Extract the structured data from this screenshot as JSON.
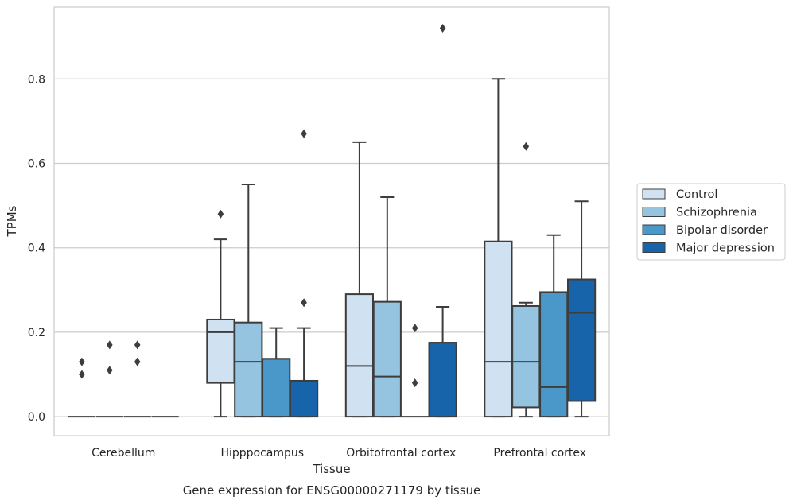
{
  "chart_data": {
    "type": "box",
    "xlabel": "Tissue",
    "ylabel": "TPMs",
    "caption": "Gene expression for ENSG00000271179 by tissue",
    "categories": [
      "Cerebellum",
      "Hipppocampus",
      "Orbitofrontal cortex",
      "Prefrontal cortex"
    ],
    "ylim": [
      -0.045,
      0.97
    ],
    "yticks": [
      "0.0",
      "0.2",
      "0.4",
      "0.6",
      "0.8"
    ],
    "grid": "horizontal",
    "legend_position": "right",
    "series": [
      {
        "name": "Control",
        "color": "#d0e1f2",
        "boxes": [
          {
            "min": 0,
            "q1": 0,
            "median": 0,
            "q3": 0,
            "max": 0,
            "outliers": [
              0.1,
              0.13
            ]
          },
          {
            "min": 0,
            "q1": 0.08,
            "median": 0.2,
            "q3": 0.23,
            "max": 0.42,
            "outliers": [
              0.48
            ]
          },
          {
            "min": 0,
            "q1": 0,
            "median": 0.12,
            "q3": 0.29,
            "max": 0.65,
            "outliers": []
          },
          {
            "min": 0,
            "q1": 0,
            "median": 0.13,
            "q3": 0.415,
            "max": 0.8,
            "outliers": []
          }
        ]
      },
      {
        "name": "Schizophrenia",
        "color": "#94c4df",
        "boxes": [
          {
            "min": 0,
            "q1": 0,
            "median": 0,
            "q3": 0,
            "max": 0,
            "outliers": [
              0.11,
              0.17
            ]
          },
          {
            "min": 0,
            "q1": 0,
            "median": 0.13,
            "q3": 0.223,
            "max": 0.55,
            "outliers": []
          },
          {
            "min": 0,
            "q1": 0,
            "median": 0.095,
            "q3": 0.272,
            "max": 0.52,
            "outliers": []
          },
          {
            "min": 0,
            "q1": 0.022,
            "median": 0.13,
            "q3": 0.262,
            "max": 0.27,
            "outliers": [
              0.64
            ]
          }
        ]
      },
      {
        "name": "Bipolar disorder",
        "color": "#4a98c9",
        "boxes": [
          {
            "min": 0,
            "q1": 0,
            "median": 0,
            "q3": 0,
            "max": 0,
            "outliers": [
              0.13,
              0.17
            ]
          },
          {
            "min": 0,
            "q1": 0,
            "median": 0.137,
            "q3": 0.137,
            "max": 0.21,
            "outliers": []
          },
          {
            "min": 0,
            "q1": 0,
            "median": 0,
            "q3": 0,
            "max": 0,
            "outliers": [
              0.08,
              0.21
            ]
          },
          {
            "min": 0,
            "q1": 0,
            "median": 0.07,
            "q3": 0.295,
            "max": 0.43,
            "outliers": []
          }
        ]
      },
      {
        "name": "Major depression",
        "color": "#1764ab",
        "boxes": [
          {
            "min": 0,
            "q1": 0,
            "median": 0,
            "q3": 0,
            "max": 0,
            "outliers": []
          },
          {
            "min": 0,
            "q1": 0,
            "median": 0.085,
            "q3": 0.085,
            "max": 0.21,
            "outliers": [
              0.27,
              0.67
            ]
          },
          {
            "min": 0,
            "q1": 0,
            "median": 0.175,
            "q3": 0.175,
            "max": 0.26,
            "outliers": [
              0.92
            ]
          },
          {
            "min": 0,
            "q1": 0.037,
            "median": 0.246,
            "q3": 0.325,
            "max": 0.51,
            "outliers": []
          }
        ]
      }
    ]
  }
}
